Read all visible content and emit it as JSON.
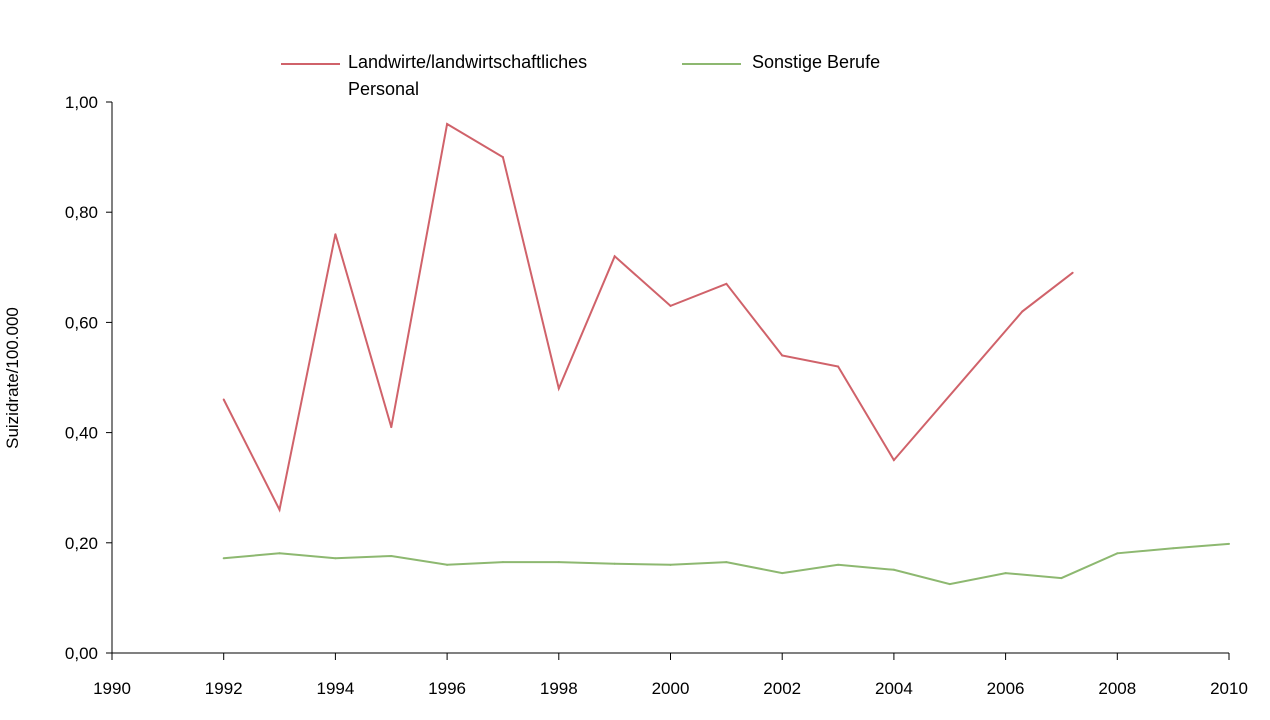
{
  "chart_data": {
    "type": "line",
    "title": "",
    "xlabel": "",
    "ylabel": "Suizidrate/100.000",
    "xlim": [
      1990,
      2010
    ],
    "ylim": [
      0,
      1.0
    ],
    "x_ticks": [
      "1990",
      "1992",
      "1994",
      "1996",
      "1998",
      "2000",
      "2002",
      "2004",
      "2006",
      "2008",
      "2010"
    ],
    "x_tick_values": [
      1990,
      1992,
      1994,
      1996,
      1998,
      2000,
      2002,
      2004,
      2006,
      2008,
      2010
    ],
    "y_ticks": [
      "0,00",
      "0,20",
      "0,40",
      "0,60",
      "0,80",
      "1,00"
    ],
    "y_tick_values": [
      0,
      0.2,
      0.4,
      0.6,
      0.8,
      1.0
    ],
    "grid": false,
    "legend_position": "top",
    "series": [
      {
        "name_line1": "Landwirte/landwirtschaftliches",
        "name_line2": "Personal",
        "color": "#d0626a",
        "x": [
          1992,
          1993,
          1994,
          1995,
          1996,
          1997,
          1998,
          1999,
          2000,
          2001,
          2002,
          2003,
          2004,
          2006.3,
          2007.2
        ],
        "values": [
          0.46,
          0.26,
          0.76,
          0.41,
          0.96,
          0.9,
          0.48,
          0.72,
          0.63,
          0.67,
          0.54,
          0.52,
          0.35,
          0.62,
          0.69
        ]
      },
      {
        "name_line1": "Sonstige Berufe",
        "name_line2": "",
        "color": "#8db870",
        "x": [
          1992,
          1993,
          1994,
          1995,
          1996,
          1997,
          1998,
          1999,
          2000,
          2001,
          2002,
          2003,
          2004,
          2005,
          2006,
          2007,
          2008,
          2009,
          2010
        ],
        "values": [
          0.172,
          0.181,
          0.172,
          0.176,
          0.16,
          0.165,
          0.165,
          0.162,
          0.16,
          0.165,
          0.145,
          0.16,
          0.151,
          0.125,
          0.145,
          0.136,
          0.181,
          0.19,
          0.198
        ]
      }
    ]
  }
}
